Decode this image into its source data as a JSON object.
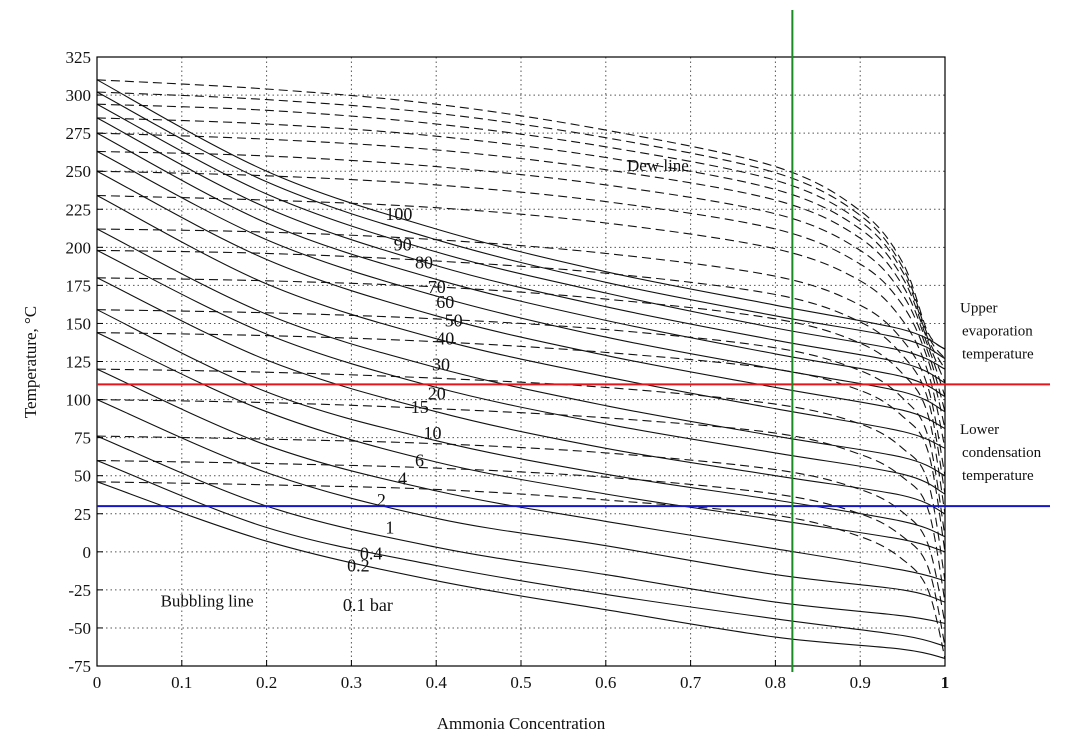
{
  "chart_data": {
    "type": "line",
    "title": "",
    "xlabel": "Ammonia Concentration",
    "ylabel": "Temperature, °C",
    "xlim": [
      0,
      1
    ],
    "ylim": [
      -75,
      325
    ],
    "x_ticks": [
      "0",
      "0.1",
      "0.2",
      "0.3",
      "0.4",
      "0.5",
      "0.6",
      "0.7",
      "0.8",
      "0.9",
      "1"
    ],
    "y_ticks": [
      "325",
      "300",
      "275",
      "250",
      "225",
      "200",
      "175",
      "150",
      "125",
      "100",
      "75",
      "50",
      "25",
      "0",
      "-25",
      "-50",
      "-75"
    ],
    "grid": true,
    "grid_style": "dotted",
    "pressure_unit": "bar",
    "pressures": [
      0.1,
      0.2,
      0.4,
      1,
      2,
      4,
      6,
      10,
      15,
      20,
      30,
      40,
      50,
      60,
      70,
      80,
      90,
      100
    ],
    "bubble_line": {
      "style": "solid",
      "x": [
        0,
        0.2,
        0.4,
        0.6,
        0.8,
        0.95,
        1
      ],
      "series": [
        {
          "pressure": 0.1,
          "values": [
            46,
            7,
            -19,
            -38,
            -56,
            -64,
            -70
          ]
        },
        {
          "pressure": 0.2,
          "values": [
            60,
            16,
            -9,
            -28,
            -44,
            -55,
            -62
          ]
        },
        {
          "pressure": 0.4,
          "values": [
            76,
            30,
            3,
            -15,
            -33,
            -42,
            -47
          ]
        },
        {
          "pressure": 1,
          "values": [
            100,
            52,
            22,
            4,
            -15,
            -25,
            -33
          ]
        },
        {
          "pressure": 2,
          "values": [
            120,
            70,
            40,
            20,
            2,
            -12,
            -19
          ]
        },
        {
          "pressure": 4,
          "values": [
            144,
            92,
            59,
            38,
            21,
            8,
            0
          ]
        },
        {
          "pressure": 6,
          "values": [
            159,
            105,
            73,
            51,
            34,
            20,
            10
          ]
        },
        {
          "pressure": 10,
          "values": [
            180,
            126,
            92,
            68,
            50,
            37,
            25
          ]
        },
        {
          "pressure": 15,
          "values": [
            198,
            143,
            108,
            84,
            65,
            51,
            38
          ]
        },
        {
          "pressure": 20,
          "values": [
            212,
            156,
            121,
            96,
            76,
            62,
            50
          ]
        },
        {
          "pressure": 30,
          "values": [
            234,
            176,
            140,
            115,
            94,
            79,
            68
          ]
        },
        {
          "pressure": 40,
          "values": [
            250,
            192,
            155,
            129,
            108,
            93,
            81
          ]
        },
        {
          "pressure": 50,
          "values": [
            263,
            205,
            168,
            141,
            120,
            105,
            92
          ]
        },
        {
          "pressure": 60,
          "values": [
            275,
            216,
            179,
            152,
            130,
            115,
            102
          ]
        },
        {
          "pressure": 70,
          "values": [
            285,
            226,
            188,
            161,
            139,
            124,
            111
          ]
        },
        {
          "pressure": 80,
          "values": [
            294,
            235,
            197,
            170,
            147,
            132,
            120
          ]
        },
        {
          "pressure": 90,
          "values": [
            302,
            243,
            205,
            177,
            155,
            140,
            127
          ]
        },
        {
          "pressure": 100,
          "values": [
            310,
            250,
            212,
            184,
            162,
            146,
            133
          ]
        }
      ]
    },
    "dew_line": {
      "style": "dashed",
      "x": [
        0,
        0.2,
        0.4,
        0.6,
        0.8,
        0.9,
        0.95,
        0.98,
        1
      ],
      "series": [
        {
          "pressure": 0.1,
          "values": [
            46,
            44,
            41,
            34,
            24,
            10,
            -5,
            -25,
            -70
          ]
        },
        {
          "pressure": 0.2,
          "values": [
            60,
            58,
            55,
            49,
            38,
            25,
            10,
            -10,
            -62
          ]
        },
        {
          "pressure": 0.4,
          "values": [
            76,
            74,
            71,
            65,
            54,
            41,
            26,
            5,
            -47
          ]
        },
        {
          "pressure": 1,
          "values": [
            100,
            98,
            94,
            88,
            78,
            64,
            49,
            28,
            -33
          ]
        },
        {
          "pressure": 2,
          "values": [
            120,
            118,
            114,
            108,
            97,
            84,
            68,
            46,
            -19
          ]
        },
        {
          "pressure": 4,
          "values": [
            144,
            142,
            138,
            131,
            120,
            106,
            89,
            66,
            0
          ]
        },
        {
          "pressure": 6,
          "values": [
            159,
            157,
            153,
            146,
            134,
            119,
            101,
            76,
            10
          ]
        },
        {
          "pressure": 10,
          "values": [
            180,
            178,
            174,
            166,
            153,
            137,
            117,
            90,
            25
          ]
        },
        {
          "pressure": 15,
          "values": [
            198,
            196,
            191,
            183,
            169,
            151,
            129,
            100,
            38
          ]
        },
        {
          "pressure": 20,
          "values": [
            212,
            210,
            205,
            196,
            181,
            162,
            139,
            108,
            50
          ]
        },
        {
          "pressure": 30,
          "values": [
            234,
            231,
            226,
            216,
            199,
            178,
            152,
            118,
            68
          ]
        },
        {
          "pressure": 40,
          "values": [
            250,
            247,
            241,
            230,
            212,
            189,
            162,
            126,
            81
          ]
        },
        {
          "pressure": 50,
          "values": [
            263,
            260,
            253,
            241,
            222,
            198,
            169,
            131,
            92
          ]
        },
        {
          "pressure": 60,
          "values": [
            275,
            271,
            264,
            251,
            231,
            206,
            175,
            135,
            102
          ]
        },
        {
          "pressure": 70,
          "values": [
            285,
            281,
            273,
            259,
            238,
            212,
            180,
            138,
            111
          ]
        },
        {
          "pressure": 80,
          "values": [
            294,
            290,
            281,
            266,
            244,
            217,
            184,
            140,
            120
          ]
        },
        {
          "pressure": 90,
          "values": [
            302,
            297,
            288,
            272,
            249,
            221,
            187,
            142,
            127
          ]
        },
        {
          "pressure": 100,
          "values": [
            310,
            304,
            294,
            277,
            253,
            224,
            190,
            144,
            133
          ]
        }
      ]
    },
    "curve_labels": [
      {
        "text": "100",
        "x": 0.34,
        "y": 222
      },
      {
        "text": "90",
        "x": 0.35,
        "y": 202
      },
      {
        "text": "80",
        "x": 0.375,
        "y": 190
      },
      {
        "text": "70",
        "x": 0.39,
        "y": 174
      },
      {
        "text": "60",
        "x": 0.4,
        "y": 164
      },
      {
        "text": "50",
        "x": 0.41,
        "y": 152
      },
      {
        "text": "40",
        "x": 0.4,
        "y": 140
      },
      {
        "text": "30",
        "x": 0.395,
        "y": 123
      },
      {
        "text": "20",
        "x": 0.39,
        "y": 104
      },
      {
        "text": "15",
        "x": 0.37,
        "y": 95
      },
      {
        "text": "10",
        "x": 0.385,
        "y": 78
      },
      {
        "text": "6",
        "x": 0.375,
        "y": 60
      },
      {
        "text": "4",
        "x": 0.355,
        "y": 48
      },
      {
        "text": "2",
        "x": 0.33,
        "y": 34
      },
      {
        "text": "1",
        "x": 0.34,
        "y": 16
      },
      {
        "text": "0.4",
        "x": 0.31,
        "y": -1
      },
      {
        "text": "0.2",
        "x": 0.295,
        "y": -9
      },
      {
        "text": "0.1 bar",
        "x": 0.29,
        "y": -35
      }
    ],
    "annotations": [
      {
        "text": "Dew line",
        "x": 0.625,
        "y": 254
      },
      {
        "text": "Bubbling line",
        "x": 0.075,
        "y": -32
      }
    ],
    "reference_lines": [
      {
        "orientation": "horizontal",
        "y": 110,
        "color": "#e8141b",
        "note": [
          "Upper",
          "evaporation",
          "temperature"
        ]
      },
      {
        "orientation": "horizontal",
        "y": 30,
        "color": "#1515c8",
        "note": [
          "Lower",
          "condensation",
          "temperature"
        ]
      },
      {
        "orientation": "vertical",
        "x": 0.82,
        "color": "#1a8a24",
        "note": []
      }
    ]
  }
}
